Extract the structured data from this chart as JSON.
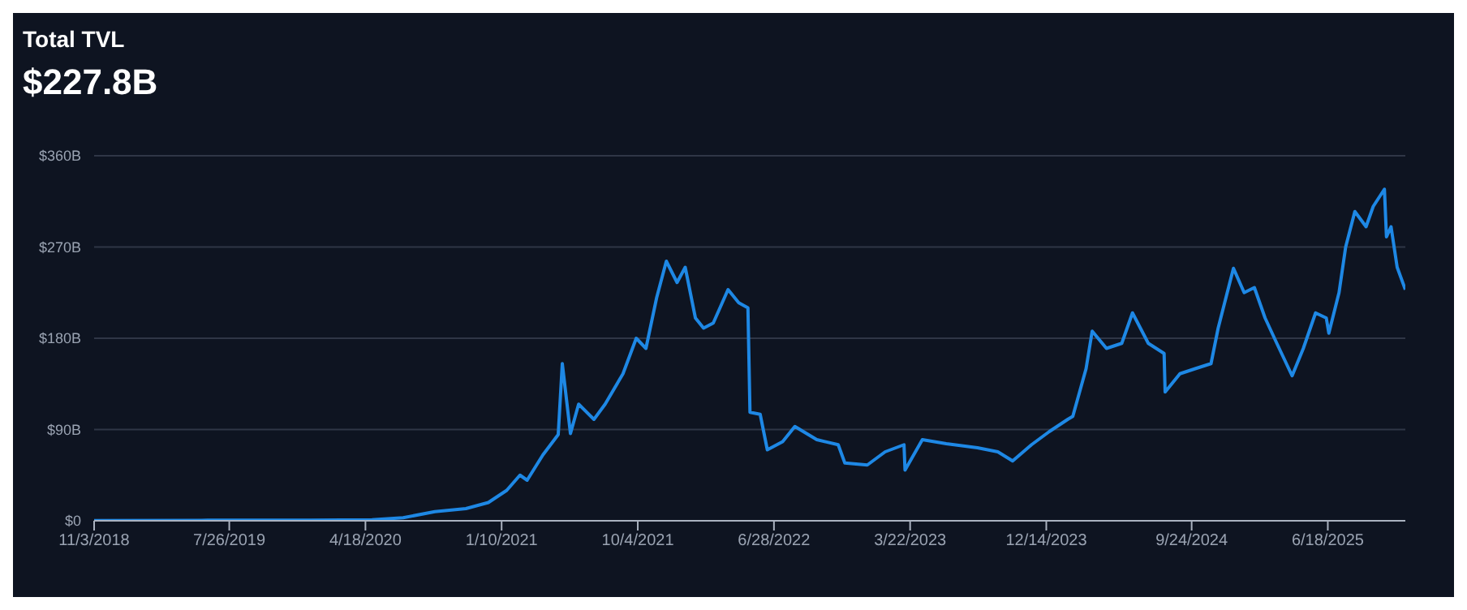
{
  "chart_data": {
    "type": "line",
    "title": "Total TVL",
    "subtitle": "$227.8B",
    "grid": "y",
    "marker": "none",
    "line_style": "solid",
    "xlim": [
      "2018-11-03",
      "2025-11-17"
    ],
    "xticks": [
      {
        "value": "2018-11-03",
        "label": "11/3/2018"
      },
      {
        "value": "2019-07-26",
        "label": "7/26/2019"
      },
      {
        "value": "2020-04-18",
        "label": "4/18/2020"
      },
      {
        "value": "2021-01-10",
        "label": "1/10/2021"
      },
      {
        "value": "2021-10-04",
        "label": "10/4/2021"
      },
      {
        "value": "2022-06-28",
        "label": "6/28/2022"
      },
      {
        "value": "2023-03-22",
        "label": "3/22/2023"
      },
      {
        "value": "2023-12-14",
        "label": "12/14/2023"
      },
      {
        "value": "2024-09-24",
        "label": "9/24/2024"
      },
      {
        "value": "2025-06-18",
        "label": "6/18/2025"
      }
    ],
    "ylim": [
      0,
      360
    ],
    "yticks": [
      {
        "value": 0,
        "label": "$0"
      },
      {
        "value": 90,
        "label": "$90B"
      },
      {
        "value": 180,
        "label": "$180B"
      },
      {
        "value": 270,
        "label": "$270B"
      },
      {
        "value": 360,
        "label": "$360B"
      }
    ],
    "x": [
      "2018-11-03",
      "2019-06-01",
      "2020-01-01",
      "2020-05-01",
      "2020-07-01",
      "2020-09-01",
      "2020-11-01",
      "2020-12-15",
      "2021-01-20",
      "2021-02-15",
      "2021-03-01",
      "2021-04-01",
      "2021-05-01",
      "2021-05-09",
      "2021-05-25",
      "2021-06-10",
      "2021-07-10",
      "2021-08-01",
      "2021-09-05",
      "2021-10-01",
      "2021-10-20",
      "2021-11-10",
      "2021-11-29",
      "2021-12-20",
      "2022-01-05",
      "2022-01-25",
      "2022-02-10",
      "2022-03-01",
      "2022-03-30",
      "2022-04-20",
      "2022-05-08",
      "2022-05-12",
      "2022-06-01",
      "2022-06-15",
      "2022-07-15",
      "2022-08-08",
      "2022-09-20",
      "2022-11-01",
      "2022-11-14",
      "2022-12-28",
      "2023-02-01",
      "2023-03-10",
      "2023-03-12",
      "2023-04-15",
      "2023-06-01",
      "2023-08-01",
      "2023-09-10",
      "2023-10-09",
      "2023-11-15",
      "2023-12-20",
      "2024-01-25",
      "2024-02-04",
      "2024-03-01",
      "2024-03-13",
      "2024-04-10",
      "2024-05-10",
      "2024-05-31",
      "2024-07-01",
      "2024-08-01",
      "2024-08-03",
      "2024-09-01",
      "2024-10-01",
      "2024-11-01",
      "2024-11-15",
      "2024-12-15",
      "2025-01-05",
      "2025-01-25",
      "2025-02-15",
      "2025-03-10",
      "2025-04-09",
      "2025-05-01",
      "2025-05-25",
      "2025-06-15",
      "2025-06-20",
      "2025-07-10",
      "2025-07-23",
      "2025-08-10",
      "2025-09-01",
      "2025-09-15",
      "2025-10-07",
      "2025-10-11",
      "2025-10-20",
      "2025-11-01",
      "2025-11-17"
    ],
    "series": [
      {
        "color": "#1e88e5",
        "values": [
          0.3,
          0.5,
          0.7,
          1,
          3,
          9,
          12,
          18,
          30,
          45,
          40,
          65,
          85,
          155,
          86,
          115,
          100,
          115,
          145,
          180,
          170,
          220,
          256,
          235,
          250,
          200,
          190,
          195,
          228,
          215,
          210,
          107,
          105,
          70,
          78,
          93,
          80,
          75,
          57,
          55,
          68,
          75,
          50,
          80,
          76,
          72,
          68,
          59,
          75,
          88,
          100,
          103,
          150,
          187,
          170,
          175,
          205,
          175,
          165,
          127,
          145,
          150,
          155,
          190,
          249,
          225,
          230,
          200,
          175,
          143,
          170,
          205,
          200,
          185,
          225,
          270,
          305,
          290,
          310,
          327,
          280,
          290,
          250,
          228
        ]
      }
    ]
  }
}
